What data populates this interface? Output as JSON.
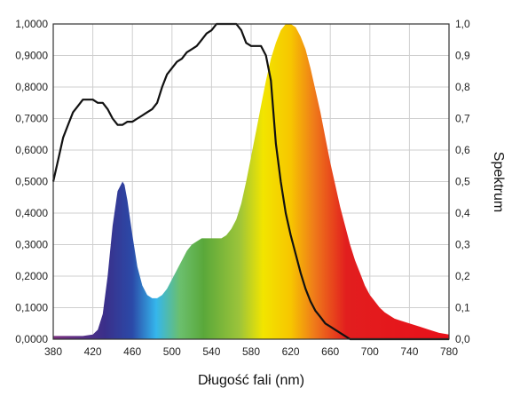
{
  "chart_data": {
    "type": "area",
    "title": "",
    "xlabel": "Długość fali (nm)",
    "ylabel_left": "",
    "ylabel_right": "Spektrum",
    "xlim": [
      380,
      780
    ],
    "ylim": [
      0,
      1
    ],
    "grid": true,
    "x_ticks": [
      "380",
      "420",
      "460",
      "500",
      "540",
      "580",
      "620",
      "660",
      "700",
      "740",
      "780"
    ],
    "y_ticks_left": [
      "0,0000",
      "0,1000",
      "0,2000",
      "0,3000",
      "0,4000",
      "0,5000",
      "0,6000",
      "0,7000",
      "0,8000",
      "0,9000",
      "1,0000"
    ],
    "y_ticks_right": [
      "0,0",
      "0,1",
      "0,2",
      "0,3",
      "0,4",
      "0,5",
      "0,6",
      "0,7",
      "0,8",
      "0,9",
      "1,0"
    ],
    "series": [
      {
        "style": "gradient-fill",
        "x": [
          380,
          390,
          400,
          410,
          420,
          425,
          430,
          435,
          440,
          445,
          450,
          452,
          455,
          460,
          465,
          470,
          475,
          480,
          485,
          490,
          495,
          500,
          505,
          510,
          515,
          520,
          525,
          530,
          535,
          540,
          545,
          550,
          555,
          560,
          565,
          570,
          575,
          580,
          585,
          590,
          595,
          600,
          605,
          610,
          615,
          620,
          625,
          630,
          635,
          640,
          645,
          650,
          655,
          660,
          665,
          670,
          675,
          680,
          685,
          690,
          695,
          700,
          705,
          710,
          715,
          720,
          725,
          730,
          740,
          750,
          760,
          770,
          780
        ],
        "values": [
          0.01,
          0.01,
          0.01,
          0.01,
          0.015,
          0.03,
          0.08,
          0.2,
          0.36,
          0.47,
          0.5,
          0.49,
          0.44,
          0.33,
          0.23,
          0.17,
          0.14,
          0.13,
          0.13,
          0.14,
          0.16,
          0.19,
          0.22,
          0.25,
          0.28,
          0.3,
          0.31,
          0.32,
          0.32,
          0.32,
          0.32,
          0.32,
          0.33,
          0.35,
          0.38,
          0.43,
          0.5,
          0.58,
          0.66,
          0.74,
          0.82,
          0.89,
          0.94,
          0.98,
          1.0,
          1.0,
          0.99,
          0.96,
          0.92,
          0.86,
          0.79,
          0.72,
          0.64,
          0.56,
          0.49,
          0.42,
          0.36,
          0.3,
          0.25,
          0.21,
          0.17,
          0.14,
          0.12,
          0.1,
          0.085,
          0.075,
          0.065,
          0.06,
          0.05,
          0.04,
          0.03,
          0.02,
          0.015
        ]
      },
      {
        "style": "black-line",
        "x": [
          380,
          385,
          390,
          395,
          400,
          405,
          410,
          415,
          420,
          425,
          430,
          435,
          440,
          445,
          450,
          455,
          460,
          465,
          470,
          475,
          480,
          485,
          490,
          495,
          500,
          505,
          510,
          515,
          520,
          525,
          530,
          535,
          540,
          545,
          550,
          555,
          560,
          565,
          570,
          575,
          580,
          585,
          590,
          595,
          600,
          605,
          610,
          615,
          620,
          625,
          630,
          635,
          640,
          645,
          650,
          655,
          660,
          665,
          670,
          675,
          680,
          685,
          690,
          695,
          700,
          705,
          710,
          715,
          720,
          725,
          730,
          735,
          740,
          745,
          750,
          760,
          770,
          780
        ],
        "values": [
          0.5,
          0.57,
          0.64,
          0.68,
          0.72,
          0.74,
          0.76,
          0.76,
          0.76,
          0.75,
          0.75,
          0.73,
          0.7,
          0.68,
          0.68,
          0.69,
          0.69,
          0.7,
          0.71,
          0.72,
          0.73,
          0.75,
          0.8,
          0.84,
          0.86,
          0.88,
          0.89,
          0.91,
          0.92,
          0.93,
          0.95,
          0.97,
          0.98,
          1.0,
          1.0,
          1.0,
          1.0,
          1.0,
          0.98,
          0.94,
          0.93,
          0.93,
          0.93,
          0.9,
          0.82,
          0.62,
          0.5,
          0.4,
          0.33,
          0.27,
          0.21,
          0.16,
          0.12,
          0.09,
          0.07,
          0.05,
          0.04,
          0.03,
          0.02,
          0.01,
          0.0,
          0.0,
          0.0,
          0.0,
          0.0,
          0.0,
          0.0,
          0.0,
          0.0,
          0.0,
          0.0,
          0.0,
          0.0,
          0.0,
          0.0,
          0.0,
          0.0,
          0.0
        ]
      }
    ]
  }
}
